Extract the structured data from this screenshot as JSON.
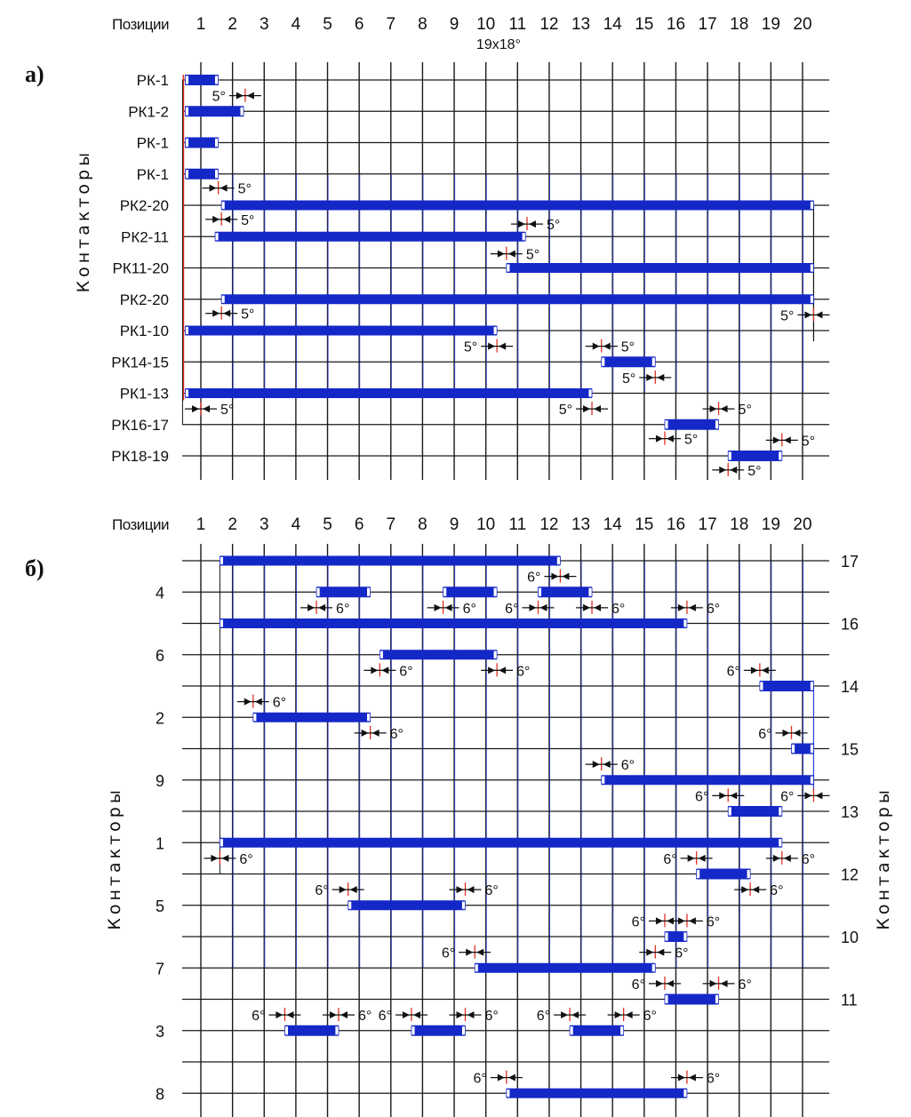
{
  "chart_data": [
    {
      "type": "gantt",
      "panel_label": "а)",
      "x_header": "Позиции",
      "x_ticks": [
        "1",
        "2",
        "3",
        "4",
        "5",
        "6",
        "7",
        "8",
        "9",
        "10",
        "11",
        "12",
        "13",
        "14",
        "15",
        "16",
        "17",
        "18",
        "19",
        "20"
      ],
      "x_note": "19x18°",
      "y_title": "Контакторы",
      "colors": {
        "bar": "#1428c8",
        "grid_major": "#1a1a1a",
        "grid_blue": "#2b3be0",
        "marker": "#e03020"
      },
      "rows": [
        {
          "label": "РК-1",
          "bars": [
            [
              1.0,
              1.55
            ]
          ]
        },
        {
          "label": "РК1-2",
          "bars": [
            [
              1.0,
              2.35
            ]
          ]
        },
        {
          "label": "РК-1",
          "bars": [
            [
              1.0,
              1.55
            ]
          ]
        },
        {
          "label": "РК-1",
          "bars": [
            [
              1.0,
              1.55
            ]
          ]
        },
        {
          "label": "РК2-20",
          "bars": [
            [
              1.65,
              20.35
            ]
          ]
        },
        {
          "label": "РК2-11",
          "bars": [
            [
              1.45,
              11.25
            ]
          ]
        },
        {
          "label": "РК11-20",
          "bars": [
            [
              10.65,
              20.35
            ]
          ]
        },
        {
          "label": "РК2-20",
          "bars": [
            [
              1.65,
              20.35
            ]
          ]
        },
        {
          "label": "РК1-10",
          "bars": [
            [
              1.0,
              10.35
            ]
          ]
        },
        {
          "label": "РК14-15",
          "bars": [
            [
              13.65,
              15.35
            ]
          ]
        },
        {
          "label": "РК1-13",
          "bars": [
            [
              1.0,
              13.35
            ]
          ]
        },
        {
          "label": "РК16-17",
          "bars": [
            [
              15.65,
              17.35
            ]
          ]
        },
        {
          "label": "РК18-19",
          "bars": [
            [
              17.65,
              19.35
            ]
          ]
        }
      ],
      "annotations": [
        {
          "row": 0.5,
          "x": 2.4,
          "text": "5°",
          "side": "left"
        },
        {
          "row": 3.45,
          "x": 1.55,
          "text": "5°",
          "side": "right"
        },
        {
          "row": 4.45,
          "x": 1.65,
          "text": "5°",
          "side": "right"
        },
        {
          "row": 4.6,
          "x": 11.3,
          "text": "5°",
          "side": "right"
        },
        {
          "row": 5.55,
          "x": 10.65,
          "text": "5°",
          "side": "right"
        },
        {
          "row": 7.45,
          "x": 1.65,
          "text": "5°",
          "side": "right"
        },
        {
          "row": 7.5,
          "x": 20.35,
          "text": "5°",
          "side": "left"
        },
        {
          "row": 8.5,
          "x": 10.35,
          "text": "5°",
          "side": "left"
        },
        {
          "row": 8.5,
          "x": 13.65,
          "text": "5°",
          "side": "right"
        },
        {
          "row": 9.5,
          "x": 15.35,
          "text": "5°",
          "side": "left"
        },
        {
          "row": 10.5,
          "x": 1.0,
          "text": "5°",
          "side": "right"
        },
        {
          "row": 10.5,
          "x": 13.35,
          "text": "5°",
          "side": "left"
        },
        {
          "row": 10.5,
          "x": 17.35,
          "text": "5°",
          "side": "right"
        },
        {
          "row": 11.45,
          "x": 15.65,
          "text": "5°",
          "side": "right"
        },
        {
          "row": 11.5,
          "x": 19.35,
          "text": "5°",
          "side": "right"
        },
        {
          "row": 12.45,
          "x": 17.65,
          "text": "5°",
          "side": "right"
        }
      ]
    },
    {
      "type": "gantt",
      "panel_label": "б)",
      "x_header": "Позиции",
      "x_ticks": [
        "1",
        "2",
        "3",
        "4",
        "5",
        "6",
        "7",
        "8",
        "9",
        "10",
        "11",
        "12",
        "13",
        "14",
        "15",
        "16",
        "17",
        "18",
        "19",
        "20"
      ],
      "y_title": "Контакторы",
      "colors": {
        "bar": "#1428c8",
        "grid_major": "#1a1a1a",
        "grid_blue": "#2b3be0",
        "marker": "#e03020"
      },
      "rows": [
        {
          "left": "",
          "right": "17",
          "bars": [
            [
              1.6,
              12.35
            ]
          ]
        },
        {
          "left": "4",
          "right": "",
          "bars": [
            [
              4.65,
              6.35
            ],
            [
              8.65,
              10.35
            ],
            [
              11.65,
              13.35
            ]
          ]
        },
        {
          "left": "",
          "right": "16",
          "bars": [
            [
              1.6,
              16.35
            ]
          ]
        },
        {
          "left": "6",
          "right": "",
          "bars": [
            [
              6.65,
              10.35
            ]
          ]
        },
        {
          "left": "",
          "right": "14",
          "bars": [
            [
              18.65,
              20.35
            ]
          ]
        },
        {
          "left": "2",
          "right": "",
          "bars": [
            [
              2.65,
              6.35
            ]
          ]
        },
        {
          "left": "",
          "right": "15",
          "bars": [
            [
              19.65,
              20.35
            ]
          ]
        },
        {
          "left": "9",
          "right": "",
          "bars": [
            [
              13.65,
              20.35
            ]
          ]
        },
        {
          "left": "",
          "right": "13",
          "bars": [
            [
              17.65,
              19.35
            ]
          ]
        },
        {
          "left": "1",
          "right": "",
          "bars": [
            [
              1.6,
              19.35
            ]
          ]
        },
        {
          "left": "",
          "right": "12",
          "bars": [
            [
              16.65,
              18.35
            ]
          ]
        },
        {
          "left": "5",
          "right": "",
          "bars": [
            [
              5.65,
              9.35
            ]
          ]
        },
        {
          "left": "",
          "right": "10",
          "bars": [
            [
              15.65,
              16.35
            ]
          ]
        },
        {
          "left": "7",
          "right": "",
          "bars": [
            [
              9.65,
              15.35
            ]
          ]
        },
        {
          "left": "",
          "right": "11",
          "bars": [
            [
              15.65,
              17.35
            ]
          ]
        },
        {
          "left": "3",
          "right": "",
          "bars": [
            [
              3.65,
              5.35
            ],
            [
              7.65,
              9.35
            ],
            [
              12.65,
              14.35
            ]
          ]
        },
        {
          "left": "",
          "right": "",
          "bars": []
        },
        {
          "left": "8",
          "right": "",
          "bars": [
            [
              10.65,
              16.35
            ]
          ]
        }
      ],
      "annotations": [
        {
          "row": 0.5,
          "x": 12.35,
          "text": "6°",
          "side": "left"
        },
        {
          "row": 1.5,
          "x": 4.65,
          "text": "6°",
          "side": "right"
        },
        {
          "row": 1.5,
          "x": 8.65,
          "text": "6°",
          "side": "right"
        },
        {
          "row": 1.5,
          "x": 11.65,
          "text": "6°",
          "side": "left"
        },
        {
          "row": 1.5,
          "x": 13.35,
          "text": "6°",
          "side": "right"
        },
        {
          "row": 1.5,
          "x": 16.35,
          "text": "6°",
          "side": "right"
        },
        {
          "row": 3.5,
          "x": 6.65,
          "text": "6°",
          "side": "right"
        },
        {
          "row": 3.5,
          "x": 10.35,
          "text": "6°",
          "side": "right"
        },
        {
          "row": 3.5,
          "x": 18.65,
          "text": "6°",
          "side": "left"
        },
        {
          "row": 4.5,
          "x": 2.65,
          "text": "6°",
          "side": "right"
        },
        {
          "row": 5.5,
          "x": 6.35,
          "text": "6°",
          "side": "right"
        },
        {
          "row": 5.5,
          "x": 19.65,
          "text": "6°",
          "side": "left"
        },
        {
          "row": 6.5,
          "x": 13.65,
          "text": "6°",
          "side": "right"
        },
        {
          "row": 7.5,
          "x": 17.65,
          "text": "6°",
          "side": "left"
        },
        {
          "row": 7.5,
          "x": 20.35,
          "text": "6°",
          "side": "left"
        },
        {
          "row": 9.5,
          "x": 1.6,
          "text": "6°",
          "side": "right"
        },
        {
          "row": 9.5,
          "x": 16.65,
          "text": "6°",
          "side": "left"
        },
        {
          "row": 9.5,
          "x": 19.35,
          "text": "6°",
          "side": "right"
        },
        {
          "row": 10.5,
          "x": 5.65,
          "text": "6°",
          "side": "left"
        },
        {
          "row": 10.5,
          "x": 9.35,
          "text": "6°",
          "side": "right"
        },
        {
          "row": 10.5,
          "x": 18.35,
          "text": "6°",
          "side": "right"
        },
        {
          "row": 11.5,
          "x": 15.65,
          "text": "6°",
          "side": "left"
        },
        {
          "row": 11.5,
          "x": 16.35,
          "text": "6°",
          "side": "right"
        },
        {
          "row": 12.5,
          "x": 9.65,
          "text": "6°",
          "side": "left"
        },
        {
          "row": 12.5,
          "x": 15.35,
          "text": "6°",
          "side": "right"
        },
        {
          "row": 13.5,
          "x": 15.65,
          "text": "6°",
          "side": "left"
        },
        {
          "row": 13.5,
          "x": 17.35,
          "text": "6°",
          "side": "right"
        },
        {
          "row": 14.5,
          "x": 3.65,
          "text": "6°",
          "side": "left"
        },
        {
          "row": 14.5,
          "x": 5.35,
          "text": "6°",
          "side": "right"
        },
        {
          "row": 14.5,
          "x": 7.65,
          "text": "6°",
          "side": "left"
        },
        {
          "row": 14.5,
          "x": 9.35,
          "text": "6°",
          "side": "right"
        },
        {
          "row": 14.5,
          "x": 12.65,
          "text": "6°",
          "side": "left"
        },
        {
          "row": 14.5,
          "x": 14.35,
          "text": "6°",
          "side": "right"
        },
        {
          "row": 16.5,
          "x": 10.65,
          "text": "6°",
          "side": "left"
        },
        {
          "row": 16.5,
          "x": 16.35,
          "text": "6°",
          "side": "right"
        }
      ]
    }
  ]
}
